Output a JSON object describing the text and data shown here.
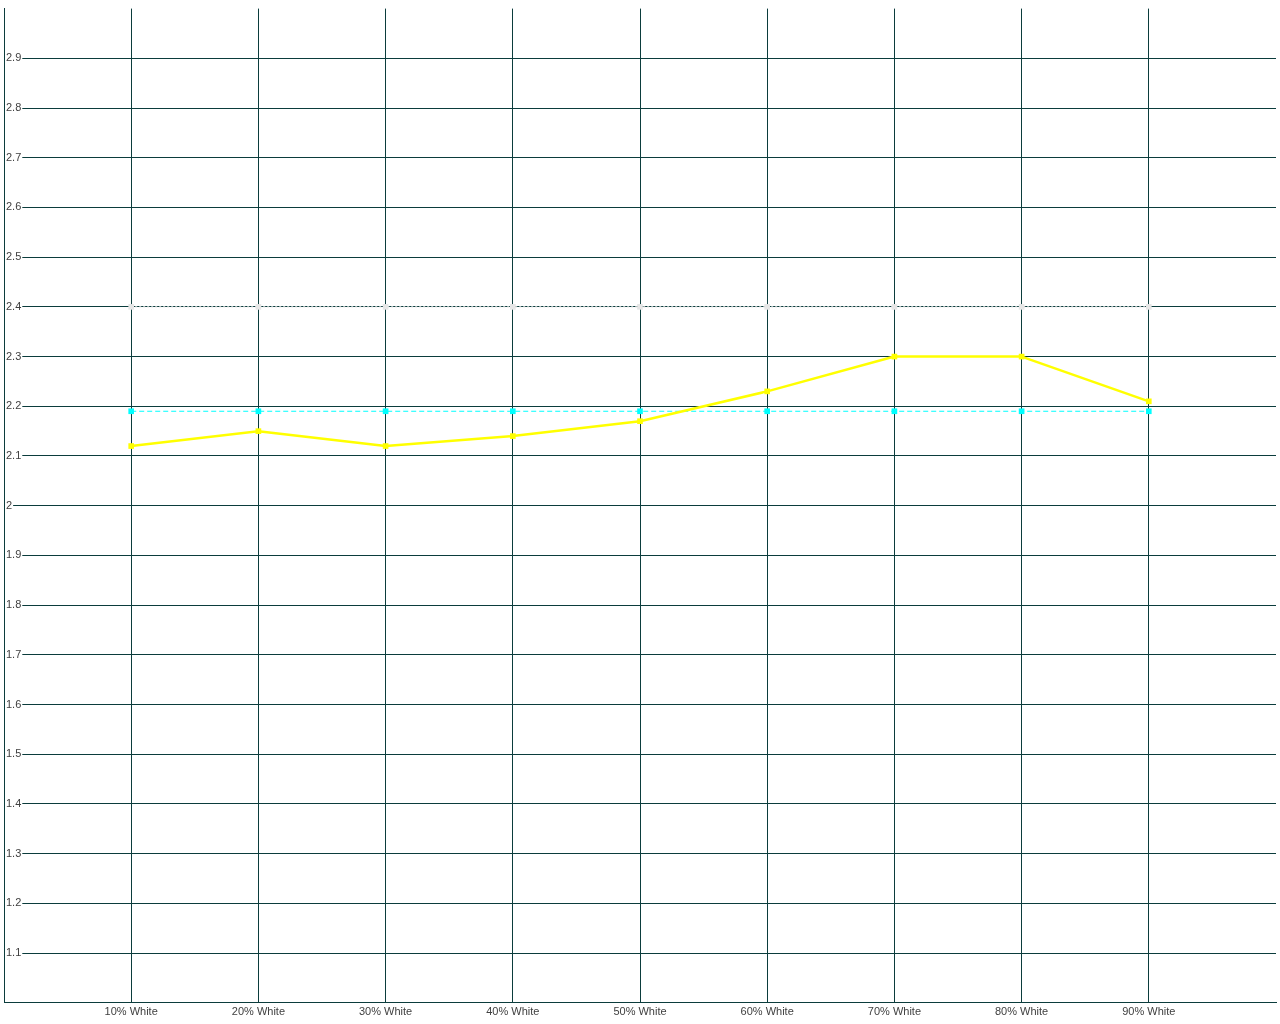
{
  "chart_data": {
    "type": "line",
    "categories": [
      "10% White",
      "20% White",
      "30% White",
      "40% White",
      "50% White",
      "60% White",
      "70% White",
      "80% White",
      "90% White"
    ],
    "ylim": [
      1,
      3
    ],
    "yticks": [
      1.1,
      1.2,
      1.3,
      1.4,
      1.5,
      1.6,
      1.7,
      1.8,
      1.9,
      2,
      2.1,
      2.2,
      2.3,
      2.4,
      2.5,
      2.6,
      2.7,
      2.8,
      2.9
    ],
    "grid": true,
    "legend": false,
    "marker": "square",
    "series": [
      {
        "color": "#ffff00",
        "line_style": "solid",
        "values": [
          2.12,
          2.15,
          2.12,
          2.14,
          2.17,
          2.23,
          2.3,
          2.3,
          2.21
        ]
      },
      {
        "color": "#00ffff",
        "line_style": "dashed",
        "values": [
          2.19,
          2.19,
          2.19,
          2.19,
          2.19,
          2.19,
          2.19,
          2.19,
          2.19
        ]
      },
      {
        "color": "#e6e6e6",
        "line_style": "dotted",
        "values": [
          2.4,
          2.4,
          2.4,
          2.4,
          2.4,
          2.4,
          2.4,
          2.4,
          2.4
        ]
      }
    ]
  }
}
